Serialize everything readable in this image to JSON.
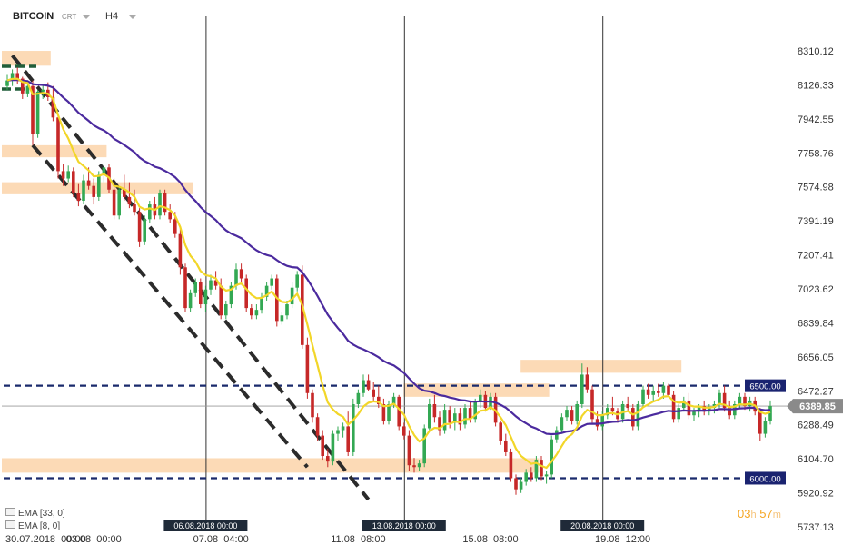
{
  "header": {
    "symbol": "BITCOIN",
    "type": "CRT",
    "timeframe": "H4"
  },
  "indicators": [
    {
      "label": "EMA [33, 0]",
      "color": "#4b2a9e"
    },
    {
      "label": "EMA [8, 0]",
      "color": "#f2d629"
    }
  ],
  "timer": {
    "hours": "03",
    "hour_unit": "h",
    "minutes": "57",
    "minute_unit": "m"
  },
  "chart_data": {
    "type": "candlestick",
    "price_axis_ticks": [
      "8310.12",
      "8126.33",
      "7942.55",
      "7758.76",
      "7574.98",
      "7391.19",
      "7207.41",
      "7023.62",
      "6839.84",
      "6656.05",
      "6472.27",
      "6288.49",
      "6104.70",
      "5920.92",
      "5737.13"
    ],
    "time_axis_ticks": [
      "30.07.2018  00:00",
      "03.08  00:00",
      "07.08  04:00",
      "11.08  08:00",
      "15.08  08:00",
      "19.08  12:00"
    ],
    "vertical_markers": [
      "06.08.2018 00:00",
      "13.08.2018 00:00",
      "20.08.2018 00:00"
    ],
    "ylim": [
      5737.13,
      8310.12
    ],
    "current_price": "6389.85",
    "levels": [
      {
        "value": 6500.0,
        "label": "6500.00"
      },
      {
        "value": 6000.0,
        "label": "6000.00"
      }
    ],
    "zones": [
      {
        "i0": 0,
        "i1": 8,
        "low": 8230,
        "high": 8310
      },
      {
        "i0": 0,
        "i1": 19,
        "low": 7735,
        "high": 7800
      },
      {
        "i0": 0,
        "i1": 36,
        "low": 7535,
        "high": 7600
      },
      {
        "i0": 79,
        "i1": 106,
        "low": 6440,
        "high": 6512
      },
      {
        "i0": 102,
        "i1": 132,
        "low": 6570,
        "high": 6640
      },
      {
        "i0": 0,
        "i1": 104,
        "low": 6030,
        "high": 6108
      }
    ],
    "channel_lines": [
      {
        "p1": [
          1,
          8285
        ],
        "p2": [
          71,
          5885
        ]
      },
      {
        "p1": [
          5,
          7800
        ],
        "p2": [
          59,
          6060
        ]
      }
    ],
    "series_ema33_color": "#4b2a9e",
    "series_ema8_color": "#f2d629",
    "candles": [
      [
        8120,
        8180,
        8100,
        8150
      ],
      [
        8150,
        8210,
        8120,
        8190
      ],
      [
        8190,
        8220,
        8130,
        8160
      ],
      [
        8160,
        8170,
        8050,
        8080
      ],
      [
        8080,
        8140,
        8060,
        8120
      ],
      [
        8120,
        8150,
        7800,
        7860
      ],
      [
        7860,
        8100,
        7840,
        8090
      ],
      [
        8090,
        8130,
        8050,
        8100
      ],
      [
        8100,
        8140,
        8040,
        8060
      ],
      [
        8060,
        8120,
        7930,
        7950
      ],
      [
        7950,
        7960,
        7620,
        7660
      ],
      [
        7660,
        7700,
        7580,
        7620
      ],
      [
        7620,
        7690,
        7600,
        7660
      ],
      [
        7660,
        7680,
        7520,
        7540
      ],
      [
        7540,
        7590,
        7470,
        7500
      ],
      [
        7500,
        7640,
        7480,
        7610
      ],
      [
        7610,
        7680,
        7560,
        7580
      ],
      [
        7580,
        7620,
        7480,
        7520
      ],
      [
        7520,
        7660,
        7500,
        7640
      ],
      [
        7640,
        7700,
        7600,
        7680
      ],
      [
        7680,
        7700,
        7540,
        7560
      ],
      [
        7560,
        7620,
        7400,
        7420
      ],
      [
        7420,
        7580,
        7400,
        7560
      ],
      [
        7560,
        7640,
        7500,
        7520
      ],
      [
        7520,
        7600,
        7460,
        7480
      ],
      [
        7480,
        7560,
        7420,
        7440
      ],
      [
        7440,
        7460,
        7250,
        7280
      ],
      [
        7280,
        7420,
        7260,
        7400
      ],
      [
        7400,
        7500,
        7380,
        7480
      ],
      [
        7480,
        7520,
        7400,
        7420
      ],
      [
        7420,
        7560,
        7400,
        7540
      ],
      [
        7540,
        7560,
        7420,
        7440
      ],
      [
        7440,
        7480,
        7380,
        7400
      ],
      [
        7400,
        7440,
        7300,
        7320
      ],
      [
        7320,
        7360,
        7100,
        7140
      ],
      [
        7140,
        7160,
        6900,
        6920
      ],
      [
        6920,
        7020,
        6900,
        7000
      ],
      [
        7000,
        7080,
        6980,
        7060
      ],
      [
        7060,
        7080,
        6920,
        6940
      ],
      [
        6940,
        7040,
        6900,
        7020
      ],
      [
        7020,
        7100,
        6990,
        7070
      ],
      [
        7070,
        7120,
        7020,
        7040
      ],
      [
        7040,
        7080,
        6860,
        6880
      ],
      [
        6880,
        6960,
        6860,
        6940
      ],
      [
        6940,
        7060,
        6920,
        7040
      ],
      [
        7040,
        7160,
        7020,
        7130
      ],
      [
        7130,
        7160,
        7060,
        7080
      ],
      [
        7080,
        7100,
        6900,
        6920
      ],
      [
        6920,
        6940,
        6860,
        6880
      ],
      [
        6880,
        6940,
        6860,
        6910
      ],
      [
        6910,
        7000,
        6890,
        6980
      ],
      [
        6980,
        7060,
        6960,
        7040
      ],
      [
        7040,
        7100,
        7020,
        7080
      ],
      [
        7080,
        7100,
        6820,
        6850
      ],
      [
        6850,
        6900,
        6830,
        6880
      ],
      [
        6880,
        6960,
        6860,
        6940
      ],
      [
        6940,
        7060,
        6920,
        7030
      ],
      [
        7030,
        7120,
        7010,
        7100
      ],
      [
        7100,
        7150,
        6700,
        6720
      ],
      [
        6720,
        6760,
        6430,
        6460
      ],
      [
        6460,
        6480,
        6300,
        6330
      ],
      [
        6330,
        6350,
        6200,
        6230
      ],
      [
        6230,
        6260,
        6100,
        6120
      ],
      [
        6120,
        6160,
        6060,
        6090
      ],
      [
        6090,
        6260,
        6070,
        6240
      ],
      [
        6240,
        6280,
        6200,
        6260
      ],
      [
        6260,
        6300,
        6220,
        6280
      ],
      [
        6280,
        6360,
        6120,
        6140
      ],
      [
        6140,
        6430,
        6120,
        6400
      ],
      [
        6400,
        6480,
        6380,
        6460
      ],
      [
        6460,
        6560,
        6440,
        6530
      ],
      [
        6530,
        6560,
        6470,
        6480
      ],
      [
        6480,
        6520,
        6420,
        6440
      ],
      [
        6440,
        6500,
        6380,
        6400
      ],
      [
        6400,
        6430,
        6290,
        6310
      ],
      [
        6310,
        6420,
        6290,
        6400
      ],
      [
        6400,
        6460,
        6380,
        6440
      ],
      [
        6440,
        6450,
        6260,
        6280
      ],
      [
        6280,
        6300,
        6210,
        6230
      ],
      [
        6230,
        6260,
        6040,
        6070
      ],
      [
        6070,
        6110,
        6030,
        6060
      ],
      [
        6060,
        6100,
        6040,
        6080
      ],
      [
        6080,
        6290,
        6060,
        6270
      ],
      [
        6270,
        6430,
        6250,
        6400
      ],
      [
        6400,
        6450,
        6300,
        6330
      ],
      [
        6330,
        6360,
        6230,
        6260
      ],
      [
        6260,
        6400,
        6240,
        6370
      ],
      [
        6370,
        6390,
        6270,
        6300
      ],
      [
        6300,
        6380,
        6260,
        6350
      ],
      [
        6350,
        6380,
        6260,
        6290
      ],
      [
        6290,
        6400,
        6270,
        6380
      ],
      [
        6380,
        6420,
        6300,
        6320
      ],
      [
        6320,
        6430,
        6300,
        6410
      ],
      [
        6410,
        6480,
        6380,
        6450
      ],
      [
        6450,
        6470,
        6360,
        6380
      ],
      [
        6380,
        6460,
        6370,
        6440
      ],
      [
        6440,
        6460,
        6280,
        6300
      ],
      [
        6300,
        6310,
        6180,
        6200
      ],
      [
        6200,
        6240,
        6120,
        6140
      ],
      [
        6140,
        6160,
        5980,
        6000
      ],
      [
        6000,
        6020,
        5910,
        5940
      ],
      [
        5940,
        6000,
        5920,
        5980
      ],
      [
        5980,
        6050,
        5960,
        6030
      ],
      [
        6030,
        6060,
        5980,
        6000
      ],
      [
        6000,
        6120,
        5980,
        6100
      ],
      [
        6100,
        6120,
        5990,
        6010
      ],
      [
        6010,
        6040,
        5970,
        6020
      ],
      [
        6020,
        6230,
        6000,
        6210
      ],
      [
        6210,
        6280,
        6190,
        6260
      ],
      [
        6260,
        6350,
        6240,
        6330
      ],
      [
        6330,
        6390,
        6310,
        6370
      ],
      [
        6370,
        6390,
        6290,
        6310
      ],
      [
        6310,
        6420,
        6290,
        6400
      ],
      [
        6400,
        6620,
        6380,
        6560
      ],
      [
        6560,
        6600,
        6460,
        6480
      ],
      [
        6480,
        6500,
        6300,
        6320
      ],
      [
        6320,
        6360,
        6260,
        6280
      ],
      [
        6280,
        6360,
        6260,
        6340
      ],
      [
        6340,
        6400,
        6320,
        6380
      ],
      [
        6380,
        6440,
        6340,
        6360
      ],
      [
        6360,
        6380,
        6300,
        6320
      ],
      [
        6320,
        6420,
        6300,
        6400
      ],
      [
        6400,
        6440,
        6360,
        6380
      ],
      [
        6380,
        6400,
        6260,
        6280
      ],
      [
        6280,
        6420,
        6260,
        6400
      ],
      [
        6400,
        6500,
        6380,
        6480
      ],
      [
        6480,
        6510,
        6430,
        6450
      ],
      [
        6450,
        6500,
        6420,
        6470
      ],
      [
        6470,
        6510,
        6440,
        6460
      ],
      [
        6460,
        6520,
        6430,
        6500
      ],
      [
        6500,
        6510,
        6440,
        6450
      ],
      [
        6450,
        6470,
        6300,
        6320
      ],
      [
        6320,
        6400,
        6300,
        6380
      ],
      [
        6380,
        6440,
        6360,
        6420
      ],
      [
        6420,
        6460,
        6320,
        6340
      ],
      [
        6340,
        6380,
        6310,
        6360
      ],
      [
        6360,
        6400,
        6330,
        6390
      ],
      [
        6390,
        6420,
        6340,
        6360
      ],
      [
        6360,
        6400,
        6340,
        6380
      ],
      [
        6380,
        6420,
        6350,
        6400
      ],
      [
        6400,
        6480,
        6380,
        6460
      ],
      [
        6460,
        6500,
        6360,
        6380
      ],
      [
        6380,
        6420,
        6320,
        6340
      ],
      [
        6340,
        6420,
        6320,
        6400
      ],
      [
        6400,
        6460,
        6380,
        6440
      ],
      [
        6440,
        6460,
        6370,
        6390
      ],
      [
        6390,
        6440,
        6360,
        6420
      ],
      [
        6420,
        6440,
        6340,
        6360
      ],
      [
        6360,
        6380,
        6200,
        6240
      ],
      [
        6240,
        6330,
        6220,
        6310
      ],
      [
        6310,
        6420,
        6290,
        6390
      ]
    ],
    "time_marker_indices": [
      0,
      17,
      42,
      69,
      95,
      121
    ],
    "vertical_marker_indices": [
      39,
      78,
      117
    ]
  }
}
